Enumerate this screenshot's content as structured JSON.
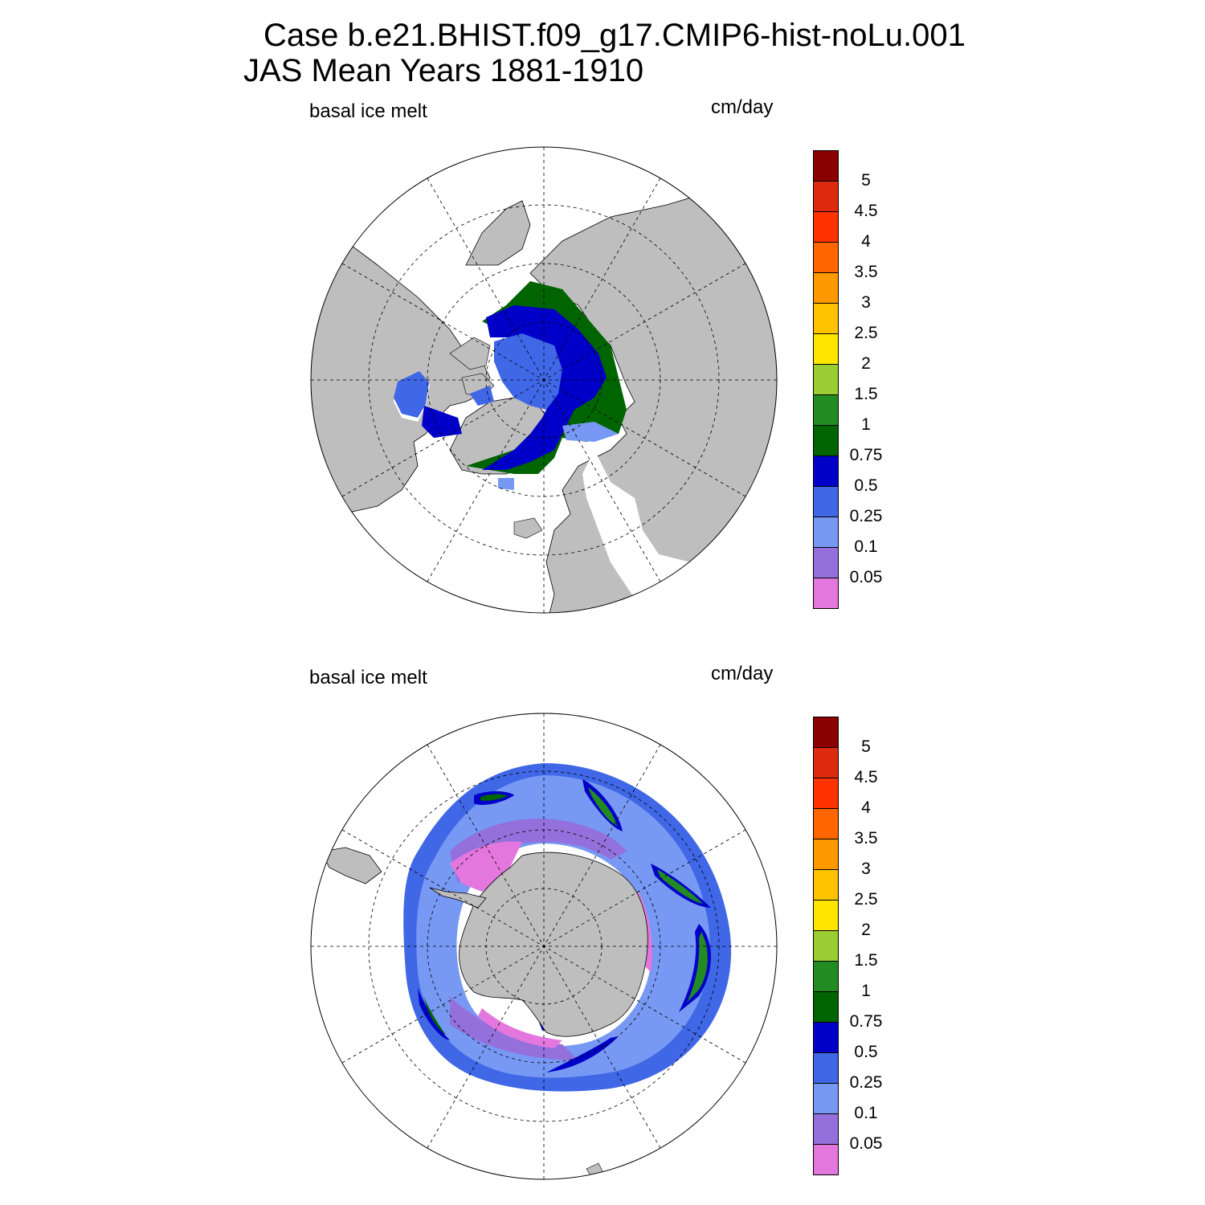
{
  "title": {
    "line1": "Case b.e21.BHIST.f09_g17.CMIP6-hist-noLu.001",
    "line2": "JAS Mean   Years 1881-1910"
  },
  "panels": [
    {
      "hemisphere": "north",
      "variable_label": "basal ice melt",
      "units_label": "cm/day"
    },
    {
      "hemisphere": "south",
      "variable_label": "basal ice melt",
      "units_label": "cm/day"
    }
  ],
  "colorbar": {
    "levels": [
      "0.05",
      "0.1",
      "0.25",
      "0.5",
      "0.75",
      "1",
      "1.5",
      "2",
      "2.5",
      "3",
      "3.5",
      "4",
      "4.5",
      "5"
    ],
    "colors": [
      "#e377dd",
      "#9370db",
      "#7799f3",
      "#3f67e6",
      "#0000c8",
      "#006400",
      "#228b22",
      "#9acd32",
      "#ffe600",
      "#ffc300",
      "#ff9900",
      "#ff6600",
      "#ff3300",
      "#de2a0f",
      "#8b0000"
    ]
  },
  "map_colors": {
    "land": "#bebebe",
    "ocean": "#ffffff"
  }
}
